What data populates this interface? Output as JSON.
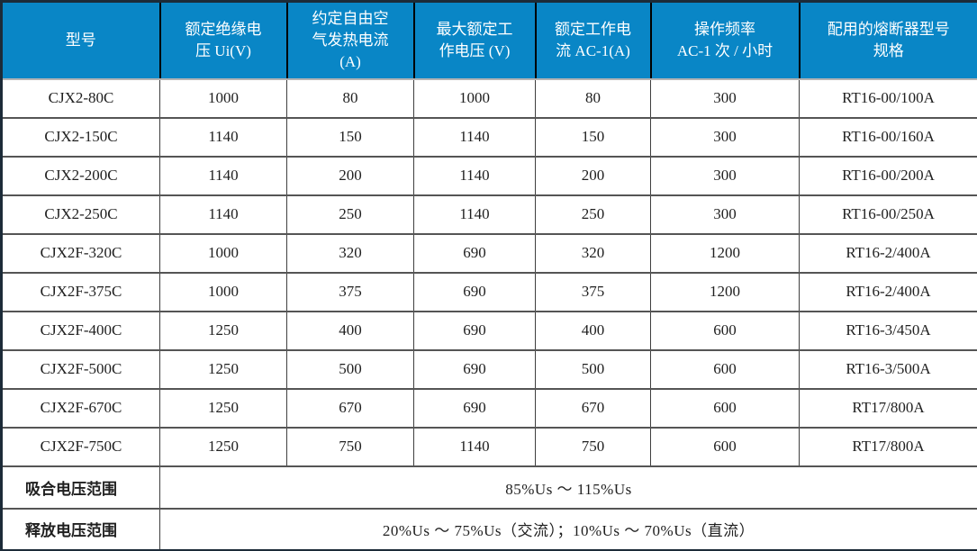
{
  "table": {
    "columns": [
      "型号",
      "额定绝缘电\n压 Ui(V)",
      "约定自由空\n气发热电流\n(A)",
      "最大额定工\n作电压 (V)",
      "额定工作电\n流 AC-1(A)",
      "操作频率\nAC-1 次 / 小时",
      "配用的熔断器型号\n规格"
    ],
    "rows": [
      [
        "CJX2-80C",
        "1000",
        "80",
        "1000",
        "80",
        "300",
        "RT16-00/100A"
      ],
      [
        "CJX2-150C",
        "1140",
        "150",
        "1140",
        "150",
        "300",
        "RT16-00/160A"
      ],
      [
        "CJX2-200C",
        "1140",
        "200",
        "1140",
        "200",
        "300",
        "RT16-00/200A"
      ],
      [
        "CJX2-250C",
        "1140",
        "250",
        "1140",
        "250",
        "300",
        "RT16-00/250A"
      ],
      [
        "CJX2F-320C",
        "1000",
        "320",
        "690",
        "320",
        "1200",
        "RT16-2/400A"
      ],
      [
        "CJX2F-375C",
        "1000",
        "375",
        "690",
        "375",
        "1200",
        "RT16-2/400A"
      ],
      [
        "CJX2F-400C",
        "1250",
        "400",
        "690",
        "400",
        "600",
        "RT16-3/450A"
      ],
      [
        "CJX2F-500C",
        "1250",
        "500",
        "690",
        "500",
        "600",
        "RT16-3/500A"
      ],
      [
        "CJX2F-670C",
        "1250",
        "670",
        "690",
        "670",
        "600",
        "RT17/800A"
      ],
      [
        "CJX2F-750C",
        "1250",
        "750",
        "1140",
        "750",
        "600",
        "RT17/800A"
      ]
    ],
    "footer_rows": [
      {
        "label": "吸合电压范围",
        "value": "85%Us ～ 115%Us"
      },
      {
        "label": "释放电压范围",
        "value": "20%Us ～ 75%Us（交流）；10%Us ～ 70%Us（直流）"
      }
    ],
    "colors": {
      "header_bg": "#0986C6",
      "header_text": "#FFFFFF",
      "outer_border": "#1C2B38"
    }
  }
}
